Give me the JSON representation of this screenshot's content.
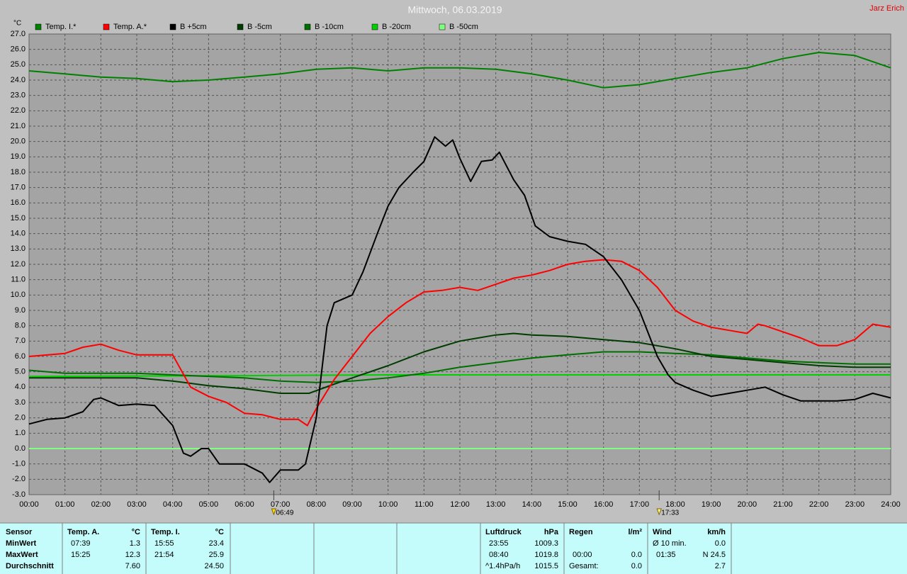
{
  "chart_data": {
    "type": "line",
    "title": "Mittwoch, 06.03.2019",
    "author": "Jarz Erich",
    "y_label": "°C",
    "xlim": [
      0,
      24
    ],
    "xticks": [
      {
        "value": 0,
        "label": "00:00"
      },
      {
        "value": 1,
        "label": "01:00"
      },
      {
        "value": 2,
        "label": "02:00"
      },
      {
        "value": 3,
        "label": "03:00"
      },
      {
        "value": 4,
        "label": "04:00"
      },
      {
        "value": 5,
        "label": "05:00"
      },
      {
        "value": 6,
        "label": "06:00"
      },
      {
        "value": 7,
        "label": "07:00"
      },
      {
        "value": 8,
        "label": "08:00"
      },
      {
        "value": 9,
        "label": "09:00"
      },
      {
        "value": 10,
        "label": "10:00"
      },
      {
        "value": 11,
        "label": "11:00"
      },
      {
        "value": 12,
        "label": "12:00"
      },
      {
        "value": 13,
        "label": "13:00"
      },
      {
        "value": 14,
        "label": "14:00"
      },
      {
        "value": 15,
        "label": "15:00"
      },
      {
        "value": 16,
        "label": "16:00"
      },
      {
        "value": 17,
        "label": "17:00"
      },
      {
        "value": 18,
        "label": "18:00"
      },
      {
        "value": 19,
        "label": "19:00"
      },
      {
        "value": 20,
        "label": "20:00"
      },
      {
        "value": 21,
        "label": "21:00"
      },
      {
        "value": 22,
        "label": "22:00"
      },
      {
        "value": 23,
        "label": "23:00"
      },
      {
        "value": 24,
        "label": "24:00"
      }
    ],
    "ylim": [
      -3,
      27
    ],
    "yticks": [
      {
        "value": -3,
        "label": "-3.0"
      },
      {
        "value": -2,
        "label": "-2.0"
      },
      {
        "value": -1,
        "label": "-1.0"
      },
      {
        "value": 0,
        "label": "0.0"
      },
      {
        "value": 1,
        "label": "1.0"
      },
      {
        "value": 2,
        "label": "2.0"
      },
      {
        "value": 3,
        "label": "3.0"
      },
      {
        "value": 4,
        "label": "4.0"
      },
      {
        "value": 5,
        "label": "5.0"
      },
      {
        "value": 6,
        "label": "6.0"
      },
      {
        "value": 7,
        "label": "7.0"
      },
      {
        "value": 8,
        "label": "8.0"
      },
      {
        "value": 9,
        "label": "9.0"
      },
      {
        "value": 10,
        "label": "10.0"
      },
      {
        "value": 11,
        "label": "11.0"
      },
      {
        "value": 12,
        "label": "12.0"
      },
      {
        "value": 13,
        "label": "13.0"
      },
      {
        "value": 14,
        "label": "14.0"
      },
      {
        "value": 15,
        "label": "15.0"
      },
      {
        "value": 16,
        "label": "16.0"
      },
      {
        "value": 17,
        "label": "17.0"
      },
      {
        "value": 18,
        "label": "18.0"
      },
      {
        "value": 19,
        "label": "19.0"
      },
      {
        "value": 20,
        "label": "20.0"
      },
      {
        "value": 21,
        "label": "21.0"
      },
      {
        "value": 22,
        "label": "22.0"
      },
      {
        "value": 23,
        "label": "23.0"
      },
      {
        "value": 24,
        "label": "24.0"
      },
      {
        "value": 25,
        "label": "25.0"
      },
      {
        "value": 26,
        "label": "26.0"
      },
      {
        "value": 27,
        "label": "27.0"
      }
    ],
    "grid": true,
    "annotations": [
      {
        "x": 6.8167,
        "label": "06:49"
      },
      {
        "x": 17.55,
        "label": "17:33"
      }
    ],
    "series": [
      {
        "name": "Temp. I.*",
        "color": "#008000",
        "x": [
          0,
          1,
          2,
          3,
          4,
          5,
          6,
          7,
          8,
          9,
          10,
          11,
          12,
          13,
          14,
          15,
          16,
          17,
          18,
          19,
          20,
          21,
          22,
          23,
          24
        ],
        "values": [
          24.6,
          24.4,
          24.2,
          24.1,
          23.9,
          24.0,
          24.2,
          24.4,
          24.7,
          24.8,
          24.6,
          24.8,
          24.8,
          24.7,
          24.4,
          24.0,
          23.5,
          23.7,
          24.1,
          24.5,
          24.8,
          25.4,
          25.8,
          25.6,
          24.8
        ]
      },
      {
        "name": "Temp. A.*",
        "color": "#ff0000",
        "x": [
          0,
          1,
          1.5,
          2,
          2.5,
          3,
          4,
          4.5,
          5,
          5.5,
          6,
          6.5,
          7,
          7.5,
          7.75,
          8,
          8.5,
          9,
          9.5,
          10,
          10.5,
          11,
          11.5,
          12,
          12.5,
          13,
          13.5,
          14,
          14.5,
          15,
          15.5,
          16,
          16.5,
          17,
          17.5,
          18,
          18.5,
          19,
          19.5,
          20,
          20.3,
          20.5,
          21,
          21.5,
          22,
          22.5,
          23,
          23.5,
          24
        ],
        "values": [
          6.0,
          6.2,
          6.6,
          6.8,
          6.4,
          6.1,
          6.1,
          4.0,
          3.4,
          3.0,
          2.3,
          2.2,
          1.9,
          1.9,
          1.5,
          2.6,
          4.5,
          6.0,
          7.5,
          8.6,
          9.5,
          10.2,
          10.3,
          10.5,
          10.3,
          10.7,
          11.1,
          11.3,
          11.6,
          12.0,
          12.2,
          12.3,
          12.2,
          11.6,
          10.5,
          9.0,
          8.3,
          7.9,
          7.7,
          7.5,
          8.1,
          8.0,
          7.6,
          7.2,
          6.7,
          6.7,
          7.1,
          8.1,
          7.9
        ]
      },
      {
        "name": "B +5cm",
        "color": "#000000",
        "x": [
          0,
          0.5,
          1,
          1.5,
          1.8,
          2,
          2.5,
          3,
          3.5,
          4,
          4.3,
          4.5,
          4.8,
          5,
          5.3,
          6,
          6.5,
          6.7,
          7,
          7.5,
          7.7,
          8,
          8.3,
          8.5,
          9,
          9.3,
          9.7,
          10,
          10.3,
          10.7,
          11,
          11.3,
          11.6,
          11.8,
          12,
          12.3,
          12.6,
          12.9,
          13.1,
          13.5,
          13.8,
          14.1,
          14.5,
          15,
          15.5,
          16,
          16.5,
          17,
          17.5,
          17.8,
          18,
          18.5,
          19,
          19.5,
          20,
          20.5,
          21,
          21.5,
          22,
          22.5,
          23,
          23.5,
          24
        ],
        "values": [
          1.6,
          1.9,
          2.0,
          2.4,
          3.2,
          3.3,
          2.8,
          2.9,
          2.8,
          1.5,
          -0.3,
          -0.5,
          0.0,
          0.0,
          -1.0,
          -1.0,
          -1.6,
          -2.2,
          -1.4,
          -1.4,
          -1.0,
          2.0,
          8.0,
          9.5,
          10.0,
          11.5,
          14.0,
          15.8,
          17.0,
          18.0,
          18.7,
          20.3,
          19.7,
          20.1,
          18.9,
          17.4,
          18.7,
          18.8,
          19.3,
          17.5,
          16.5,
          14.5,
          13.8,
          13.5,
          13.3,
          12.5,
          11.0,
          9.0,
          6.0,
          4.8,
          4.3,
          3.8,
          3.4,
          3.6,
          3.8,
          4.0,
          3.5,
          3.1,
          3.1,
          3.1,
          3.2,
          3.6,
          3.3
        ]
      },
      {
        "name": "B -5cm",
        "color": "#003c00",
        "x": [
          0,
          3,
          4,
          5,
          6,
          7,
          7.8,
          8.5,
          9,
          10,
          11,
          12,
          12.5,
          13,
          13.5,
          14,
          15,
          16,
          17,
          18,
          19,
          20,
          21,
          22,
          23,
          24
        ],
        "values": [
          4.6,
          4.6,
          4.4,
          4.1,
          3.9,
          3.6,
          3.6,
          4.2,
          4.6,
          5.4,
          6.3,
          7.0,
          7.2,
          7.4,
          7.5,
          7.4,
          7.3,
          7.1,
          6.9,
          6.5,
          6.0,
          5.8,
          5.6,
          5.4,
          5.3,
          5.3
        ]
      },
      {
        "name": "B -10cm",
        "color": "#006e00",
        "x": [
          0,
          1,
          3,
          4,
          6,
          7,
          8,
          9,
          10,
          11,
          12,
          13,
          14,
          15,
          16,
          17,
          18,
          19,
          20,
          21,
          22,
          23,
          24
        ],
        "values": [
          5.1,
          4.9,
          4.9,
          4.8,
          4.6,
          4.4,
          4.3,
          4.4,
          4.6,
          4.9,
          5.3,
          5.6,
          5.9,
          6.1,
          6.3,
          6.3,
          6.2,
          6.1,
          5.9,
          5.7,
          5.6,
          5.5,
          5.5
        ]
      },
      {
        "name": "B -20cm",
        "color": "#00d000",
        "x": [
          0,
          6,
          10,
          24
        ],
        "values": [
          4.7,
          4.75,
          4.8,
          4.8
        ]
      },
      {
        "name": "B -50cm",
        "color": "#80ff80",
        "x": [
          0,
          24
        ],
        "values": [
          0,
          0
        ]
      }
    ]
  },
  "stats": {
    "row_labels": {
      "header": "Sensor",
      "rows": [
        "MinWert",
        "MaxWert",
        "Durchschnitt"
      ]
    },
    "columns": [
      {
        "name": "Temp. A.",
        "unit": "°C",
        "rows": [
          {
            "time": "07:39",
            "value": "1.3"
          },
          {
            "time": "15:25",
            "value": "12.3"
          },
          {
            "value": "7.60"
          }
        ]
      },
      {
        "name": "Temp. I.",
        "unit": "°C",
        "rows": [
          {
            "time": "15:55",
            "value": "23.4"
          },
          {
            "time": "21:54",
            "value": "25.9"
          },
          {
            "value": "24.50"
          }
        ]
      },
      {
        "name": "Luftdruck",
        "unit": "hPa",
        "rows": [
          {
            "time": "23:55",
            "value": "1009.3"
          },
          {
            "time": "08:40",
            "value": "1019.8"
          },
          {
            "time": "^1.4hPa/h",
            "value": "1015.5"
          }
        ]
      },
      {
        "name": "Regen",
        "unit": "l/m²",
        "rows": [
          null,
          {
            "time": "00:00",
            "value": "0.0"
          },
          {
            "time": "Gesamt:",
            "value": "0.0"
          }
        ]
      },
      {
        "name": "Wind",
        "unit": "km/h",
        "rows": [
          {
            "time": "Ø 10 min.",
            "value": "0.0"
          },
          {
            "time": "01:35",
            "value": "N 24.5"
          },
          {
            "value": "2.7"
          }
        ]
      }
    ]
  }
}
